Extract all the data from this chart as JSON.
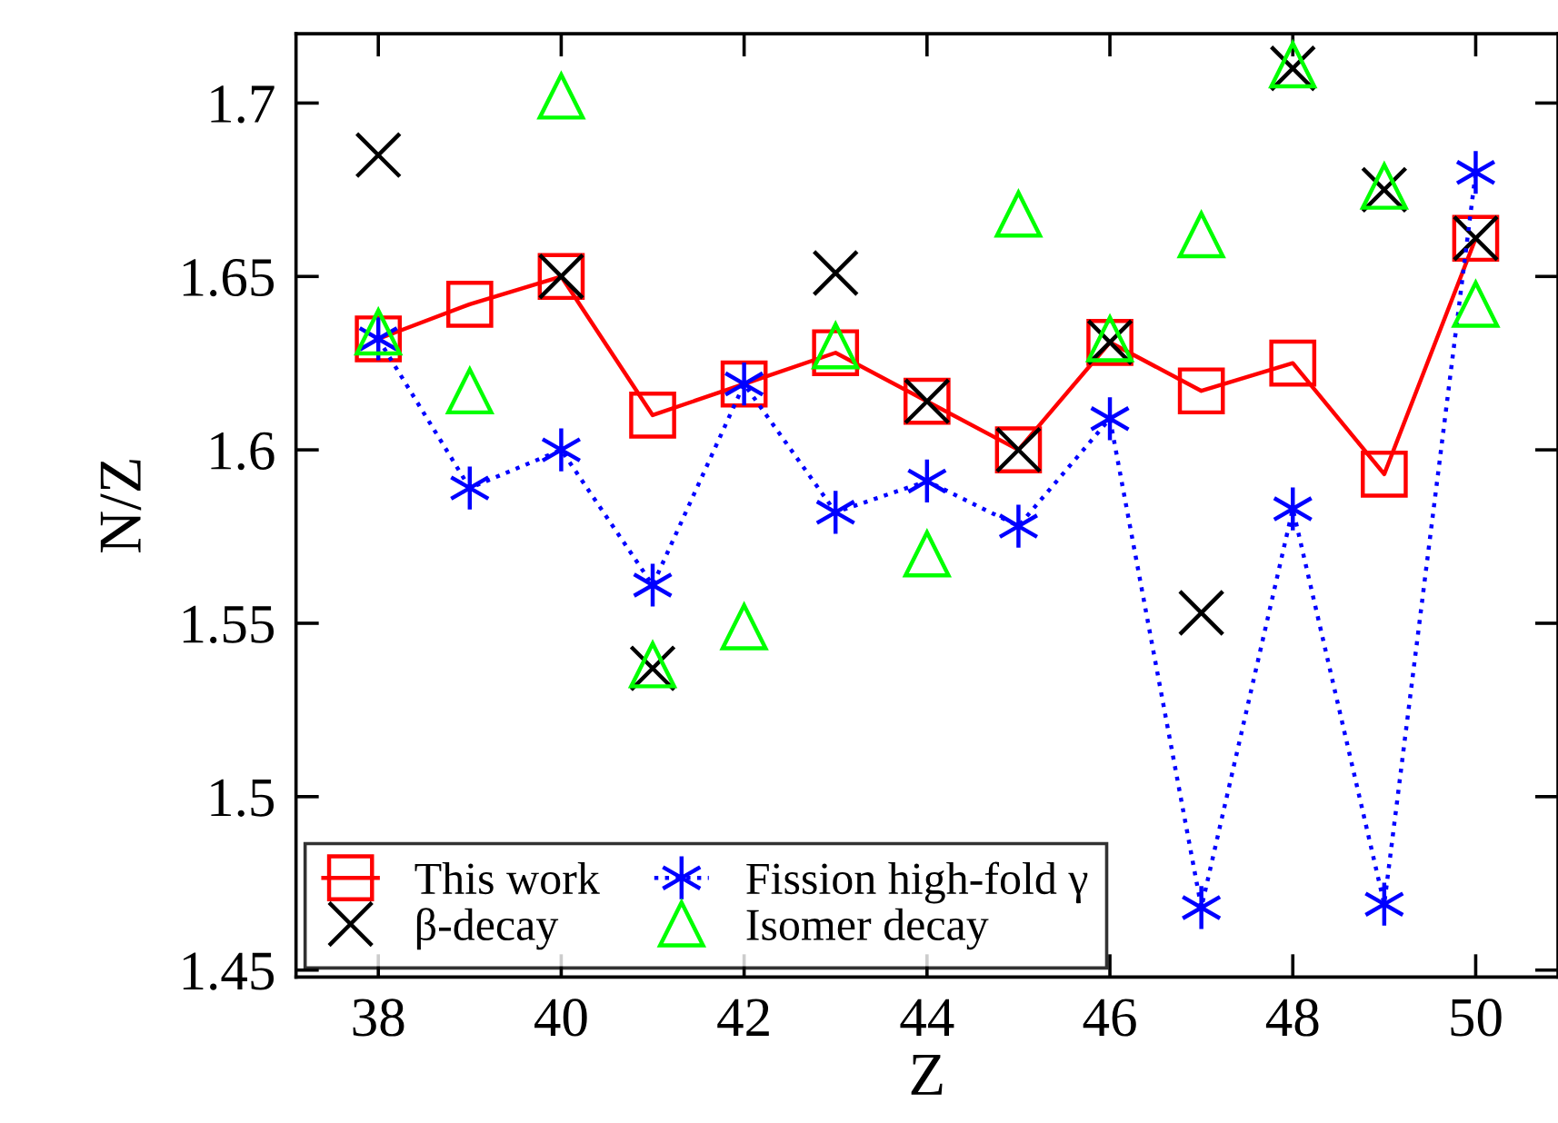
{
  "chart_data": {
    "type": "scatter",
    "xlabel": "Z",
    "ylabel": "N/Z",
    "x": [
      38,
      39,
      40,
      41,
      42,
      43,
      44,
      45,
      46,
      47,
      48,
      49,
      50
    ],
    "xlim": [
      37.1,
      50.9
    ],
    "xticks": [
      38,
      40,
      42,
      44,
      46,
      48,
      50
    ],
    "ylim": [
      1.448,
      1.72
    ],
    "yticks": [
      1.45,
      1.5,
      1.55,
      1.6,
      1.65,
      1.7
    ],
    "grid": false,
    "legend": "bottom left",
    "series": [
      {
        "name": "This work",
        "type": "line",
        "color": "#ff0000",
        "marker": "square",
        "line_style": "solid",
        "values": [
          1.632,
          1.642,
          1.65,
          1.61,
          1.619,
          1.628,
          1.614,
          1.6,
          1.631,
          1.617,
          1.625,
          1.593,
          1.661
        ]
      },
      {
        "name": "β-decay",
        "color": "#000000",
        "marker": "cross",
        "values": [
          1.685,
          null,
          1.65,
          1.537,
          null,
          1.651,
          1.614,
          1.6,
          1.631,
          1.553,
          1.71,
          1.675,
          1.661
        ]
      },
      {
        "name": "Fission high-fold γ",
        "type": "line",
        "color": "#0000ff",
        "marker": "cross",
        "line_style": "dotted",
        "values": [
          1.632,
          1.589,
          1.6,
          1.561,
          1.619,
          1.582,
          1.591,
          1.578,
          1.609,
          1.468,
          1.583,
          1.469,
          1.68
        ]
      },
      {
        "name": "Isomer decay",
        "color": "#00ff00",
        "marker": "triangle",
        "values": [
          1.634,
          1.617,
          1.702,
          1.538,
          1.549,
          1.63,
          1.57,
          1.668,
          1.632,
          1.662,
          1.711,
          1.676,
          1.642
        ]
      }
    ]
  }
}
